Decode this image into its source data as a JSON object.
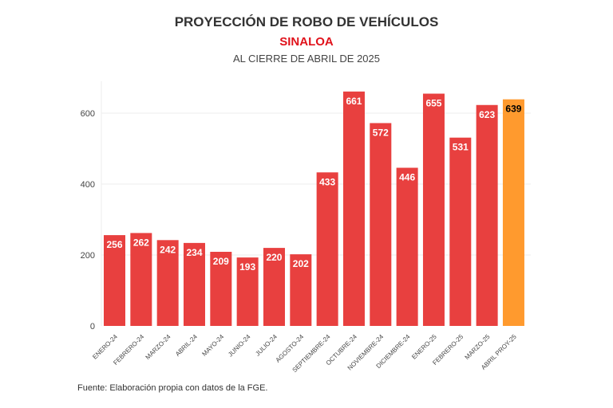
{
  "chart_data": {
    "type": "bar",
    "title": "PROYECCIÓN DE ROBO DE VEHÍCULOS",
    "subtitle": "SINALOA",
    "subtitle2": "AL CIERRE DE ABRIL DE 2025",
    "source": "Fuente: Elaboración propia con datos de la FGE.",
    "categories": [
      "ENERO-24",
      "FEBRERO-24",
      "MARZO-24",
      "ABRIL-24",
      "MAYO-24",
      "JUNIO-24",
      "JULIO-24",
      "AGOSTO-24",
      "SEPTIEMBRE-24",
      "OCTUBRE-24",
      "NOVIEMBRE-24",
      "DICIEMBRE-24",
      "ENERO-25",
      "FEBRERO-25",
      "MARZO-25",
      "ABRIL PROY-25"
    ],
    "values": [
      256,
      262,
      242,
      234,
      209,
      193,
      220,
      202,
      433,
      661,
      572,
      446,
      655,
      531,
      623,
      639
    ],
    "projected": [
      false,
      false,
      false,
      false,
      false,
      false,
      false,
      false,
      false,
      false,
      false,
      false,
      false,
      false,
      false,
      true
    ],
    "yticks": [
      0,
      200,
      400,
      600
    ],
    "ylim": [
      0,
      690
    ],
    "grid": true,
    "colors": {
      "actual": "#e8403f",
      "projected": "#ff9a2e",
      "actual_label": "#ffffff",
      "projected_label": "#000000"
    }
  }
}
